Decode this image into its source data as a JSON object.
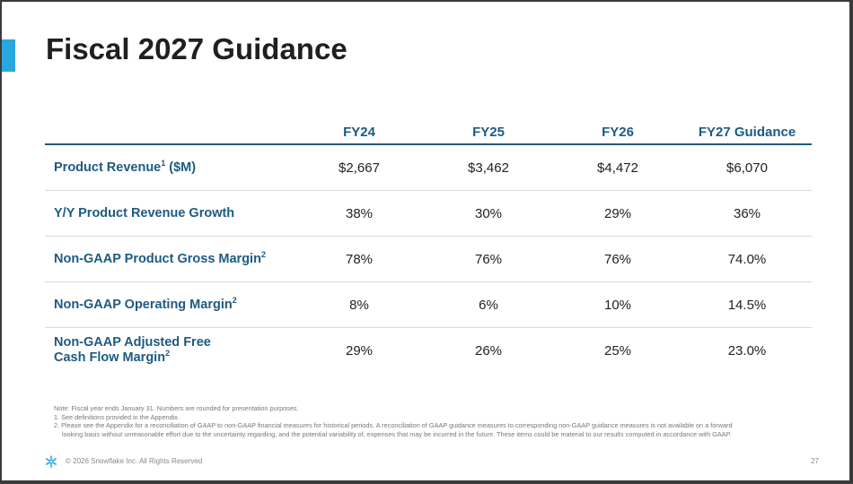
{
  "slide": {
    "title": "Fiscal 2027 Guidance",
    "page_number": "27"
  },
  "table": {
    "columns": [
      "FY24",
      "FY25",
      "FY26",
      "FY27 Guidance"
    ],
    "rows": [
      {
        "label": "Product Revenue",
        "sup": "1",
        "suffix": " ($M)",
        "label2": "",
        "sup2": "",
        "values": [
          "$2,667",
          "$3,462",
          "$4,472",
          "$6,070"
        ]
      },
      {
        "label": "Y/Y Product Revenue Growth",
        "sup": "",
        "suffix": "",
        "label2": "",
        "sup2": "",
        "values": [
          "38%",
          "30%",
          "29%",
          "36%"
        ]
      },
      {
        "label": "Non-GAAP Product Gross Margin",
        "sup": "2",
        "suffix": "",
        "label2": "",
        "sup2": "",
        "values": [
          "78%",
          "76%",
          "76%",
          "74.0%"
        ]
      },
      {
        "label": "Non-GAAP Operating Margin",
        "sup": "2",
        "suffix": "",
        "label2": "",
        "sup2": "",
        "values": [
          "8%",
          "6%",
          "10%",
          "14.5%"
        ]
      },
      {
        "label": "Non-GAAP Adjusted Free",
        "sup": "",
        "suffix": "",
        "label2": "Cash Flow Margin",
        "sup2": "2",
        "values": [
          "29%",
          "26%",
          "25%",
          "23.0%"
        ]
      }
    ]
  },
  "notes": {
    "line1": "Note: Fiscal year ends January 31. Numbers are rounded for presentation purposes.",
    "line2": "1. See definitions provided in the Appendix.",
    "line3": "2. Please see the Appendix for a reconciliation of GAAP to non-GAAP financial measures for historical periods. A reconciliation of GAAP guidance measures to corresponding non-GAAP guidance measures is not available on a forward",
    "line4": "looking basis without unreasonable effort due to the uncertainty regarding, and the potential variability of, expenses that may be incurred in the future. These items could be material to our results computed in accordance with GAAP."
  },
  "footer": {
    "logo_icon": "snowflake-icon",
    "copyright": "© 2026 Snowflake Inc. All Rights Reserved"
  },
  "colors": {
    "accent": "#29a8e0",
    "header_text": "#1d5a82",
    "row_divider": "#d9d9d9"
  }
}
